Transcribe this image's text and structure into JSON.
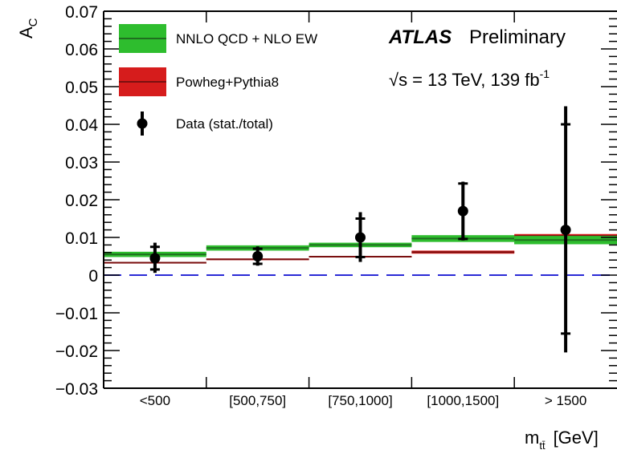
{
  "chart_data": {
    "type": "bar",
    "title": "",
    "ylabel": "A",
    "ylabel_sub": "C",
    "xlabel": "m",
    "xlabel_sub": "tt̄",
    "xlabel_unit": "[GeV]",
    "ylim": [
      -0.03,
      0.07
    ],
    "yticks": [
      "0.07",
      "0.06",
      "0.05",
      "0.04",
      "0.03",
      "0.02",
      "0.01",
      "0",
      "−0.01",
      "−0.02",
      "−0.03"
    ],
    "ytick_values": [
      0.07,
      0.06,
      0.05,
      0.04,
      0.03,
      0.02,
      0.01,
      0,
      -0.01,
      -0.02,
      -0.03
    ],
    "categories": [
      "<500",
      "[500,750]",
      "[750,1000]",
      "[1000,1500]",
      "> 1500"
    ],
    "series": [
      {
        "name": "NNLO QCD + NLO EW",
        "color": "#2ebd2e",
        "line_color": "#1f6f1f",
        "values": [
          0.0055,
          0.0072,
          0.008,
          0.0097,
          0.0093
        ],
        "band_low": [
          0.0048,
          0.0065,
          0.0074,
          0.0088,
          0.0082
        ],
        "band_high": [
          0.0062,
          0.0079,
          0.0086,
          0.0106,
          0.0104
        ]
      },
      {
        "name": "Powheg+Pythia8",
        "color": "#d61c1c",
        "line_color": "#7a1010",
        "values": [
          0.0033,
          0.0042,
          0.0049,
          0.0061,
          0.0104
        ],
        "band_low": [
          0.0031,
          0.004,
          0.0047,
          0.0057,
          0.0099
        ],
        "band_high": [
          0.0035,
          0.0044,
          0.0051,
          0.0065,
          0.0109
        ]
      },
      {
        "name": "Data (stat./total)",
        "color": "#000000",
        "values": [
          0.0045,
          0.005,
          0.01,
          0.017,
          0.012
        ],
        "stat_low": [
          0.0015,
          0.003,
          0.0048,
          0.0096,
          -0.0155
        ],
        "stat_high": [
          0.0075,
          0.007,
          0.015,
          0.0243,
          0.04
        ],
        "total_low": [
          0.0006,
          0.0025,
          0.0035,
          0.0092,
          -0.0205
        ],
        "total_high": [
          0.0086,
          0.0076,
          0.0167,
          0.0248,
          0.0448
        ]
      }
    ],
    "reference_line": 0,
    "grid": false,
    "legend_position": "top-left",
    "annotations": {
      "atlas": "ATLAS",
      "preliminary": "Preliminary",
      "energy": "√s = 13 TeV, 139 fb",
      "energy_sup": "-1"
    }
  }
}
